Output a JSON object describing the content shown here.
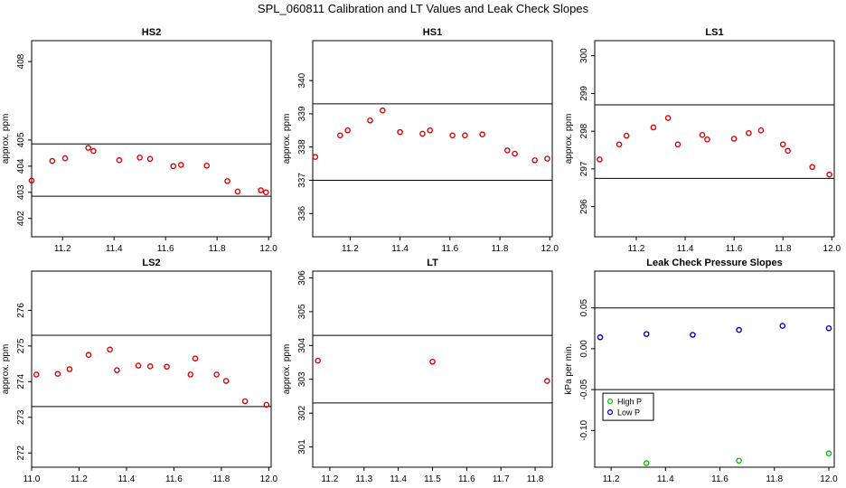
{
  "figure_title": "SPL_060811  Calibration and LT Values and Leak Check Slopes",
  "chart_data": [
    {
      "type": "scatter",
      "title": "HS2",
      "ylabel": "approx. ppm",
      "xlim": [
        11.08,
        12.01
      ],
      "ylim": [
        401.3,
        408.8
      ],
      "xticks": [
        "11.2",
        "11.4",
        "11.6",
        "11.8",
        "12.0"
      ],
      "yticks": [
        "402",
        "403",
        "404",
        "405",
        "408"
      ],
      "hlines": [
        404.85,
        402.85
      ],
      "points": [
        {
          "x": 11.08,
          "y": 403.45
        },
        {
          "x": 11.16,
          "y": 404.2
        },
        {
          "x": 11.21,
          "y": 404.3
        },
        {
          "x": 11.3,
          "y": 404.7
        },
        {
          "x": 11.32,
          "y": 404.58
        },
        {
          "x": 11.42,
          "y": 404.23
        },
        {
          "x": 11.5,
          "y": 404.33
        },
        {
          "x": 11.54,
          "y": 404.28
        },
        {
          "x": 11.63,
          "y": 404.0
        },
        {
          "x": 11.66,
          "y": 404.05
        },
        {
          "x": 11.76,
          "y": 404.02
        },
        {
          "x": 11.84,
          "y": 403.43
        },
        {
          "x": 11.88,
          "y": 403.03
        },
        {
          "x": 11.97,
          "y": 403.08
        },
        {
          "x": 11.99,
          "y": 403.0
        }
      ]
    },
    {
      "type": "scatter",
      "title": "HS1",
      "ylabel": "approx. ppm",
      "xlim": [
        11.05,
        12.01
      ],
      "ylim": [
        335.3,
        341.2
      ],
      "xticks": [
        "11.2",
        "11.4",
        "11.6",
        "11.8",
        "12.0"
      ],
      "yticks": [
        "336",
        "337",
        "338",
        "339",
        "340"
      ],
      "hlines": [
        339.3,
        337.0
      ],
      "points": [
        {
          "x": 11.06,
          "y": 337.7
        },
        {
          "x": 11.16,
          "y": 338.35
        },
        {
          "x": 11.19,
          "y": 338.5
        },
        {
          "x": 11.28,
          "y": 338.8
        },
        {
          "x": 11.33,
          "y": 339.1
        },
        {
          "x": 11.4,
          "y": 338.45
        },
        {
          "x": 11.49,
          "y": 338.4
        },
        {
          "x": 11.52,
          "y": 338.5
        },
        {
          "x": 11.61,
          "y": 338.35
        },
        {
          "x": 11.66,
          "y": 338.35
        },
        {
          "x": 11.73,
          "y": 338.38
        },
        {
          "x": 11.83,
          "y": 337.9
        },
        {
          "x": 11.86,
          "y": 337.8
        },
        {
          "x": 11.94,
          "y": 337.6
        },
        {
          "x": 11.99,
          "y": 337.65
        }
      ]
    },
    {
      "type": "scatter",
      "title": "LS1",
      "ylabel": "approx. ppm",
      "xlim": [
        11.03,
        12.01
      ],
      "ylim": [
        295.2,
        300.4
      ],
      "xticks": [
        "11.2",
        "11.4",
        "11.6",
        "11.8",
        "12.0"
      ],
      "yticks": [
        "296",
        "297",
        "298",
        "299",
        "300"
      ],
      "hlines": [
        298.7,
        296.75
      ],
      "points": [
        {
          "x": 11.05,
          "y": 297.25
        },
        {
          "x": 11.13,
          "y": 297.65
        },
        {
          "x": 11.16,
          "y": 297.88
        },
        {
          "x": 11.27,
          "y": 298.1
        },
        {
          "x": 11.33,
          "y": 298.35
        },
        {
          "x": 11.37,
          "y": 297.65
        },
        {
          "x": 11.47,
          "y": 297.9
        },
        {
          "x": 11.49,
          "y": 297.78
        },
        {
          "x": 11.6,
          "y": 297.8
        },
        {
          "x": 11.66,
          "y": 297.95
        },
        {
          "x": 11.71,
          "y": 298.02
        },
        {
          "x": 11.8,
          "y": 297.65
        },
        {
          "x": 11.82,
          "y": 297.48
        },
        {
          "x": 11.92,
          "y": 297.05
        },
        {
          "x": 11.99,
          "y": 296.85
        }
      ]
    },
    {
      "type": "scatter",
      "title": "LS2",
      "ylabel": "approx. ppm",
      "xlim": [
        11.0,
        12.01
      ],
      "ylim": [
        271.6,
        277.1
      ],
      "xticks": [
        "11.0",
        "11.2",
        "11.4",
        "11.6",
        "11.8",
        "12.0"
      ],
      "yticks": [
        "272",
        "273",
        "274",
        "275",
        "276"
      ],
      "hlines": [
        275.3,
        273.3
      ],
      "points": [
        {
          "x": 11.02,
          "y": 274.2
        },
        {
          "x": 11.11,
          "y": 274.22
        },
        {
          "x": 11.16,
          "y": 274.35
        },
        {
          "x": 11.24,
          "y": 274.75
        },
        {
          "x": 11.33,
          "y": 274.9
        },
        {
          "x": 11.36,
          "y": 274.32
        },
        {
          "x": 11.45,
          "y": 274.45
        },
        {
          "x": 11.5,
          "y": 274.43
        },
        {
          "x": 11.57,
          "y": 274.42
        },
        {
          "x": 11.67,
          "y": 274.2
        },
        {
          "x": 11.69,
          "y": 274.65
        },
        {
          "x": 11.78,
          "y": 274.2
        },
        {
          "x": 11.82,
          "y": 274.02
        },
        {
          "x": 11.9,
          "y": 273.45
        },
        {
          "x": 11.99,
          "y": 273.35
        }
      ]
    },
    {
      "type": "scatter",
      "title": "LT",
      "ylabel": "approx. ppm",
      "xlim": [
        11.15,
        11.85
      ],
      "ylim": [
        300.4,
        306.2
      ],
      "xticks": [
        "11.2",
        "11.3",
        "11.4",
        "11.5",
        "11.6",
        "11.7",
        "11.8"
      ],
      "yticks": [
        "301",
        "302",
        "303",
        "304",
        "305",
        "306"
      ],
      "hlines": [
        304.3,
        302.3
      ],
      "points": [
        {
          "x": 11.165,
          "y": 303.55
        },
        {
          "x": 11.5,
          "y": 303.52
        },
        {
          "x": 11.835,
          "y": 302.95
        }
      ]
    },
    {
      "type": "scatter",
      "title": "Leak Check Pressure Slopes",
      "ylabel": "kPa per min.",
      "xlim": [
        11.14,
        12.02
      ],
      "ylim": [
        -0.145,
        0.095
      ],
      "xticks": [
        "11.2",
        "11.4",
        "11.6",
        "11.8",
        "12.0"
      ],
      "yticks": [
        "-0.10",
        "-0.05",
        "0.00",
        "0.05"
      ],
      "hlines": [
        0.05,
        -0.05
      ],
      "legend": {
        "placement": "left",
        "entries": [
          {
            "label": "High P",
            "color": "#00c800"
          },
          {
            "label": "Low P",
            "color": "#0000cc"
          }
        ]
      },
      "series": [
        {
          "name": "High P",
          "color": "#00c800",
          "points": [
            {
              "x": 11.33,
              "y": -0.14
            },
            {
              "x": 11.67,
              "y": -0.137
            },
            {
              "x": 12.0,
              "y": -0.128
            }
          ]
        },
        {
          "name": "Low P",
          "color": "#0000cc",
          "points": [
            {
              "x": 11.16,
              "y": 0.014
            },
            {
              "x": 11.33,
              "y": 0.018
            },
            {
              "x": 11.5,
              "y": 0.017
            },
            {
              "x": 11.67,
              "y": 0.023
            },
            {
              "x": 11.83,
              "y": 0.028
            },
            {
              "x": 12.0,
              "y": 0.025
            }
          ]
        }
      ]
    }
  ],
  "colors": {
    "points_default": "#dd0000",
    "axes": "#000000"
  }
}
